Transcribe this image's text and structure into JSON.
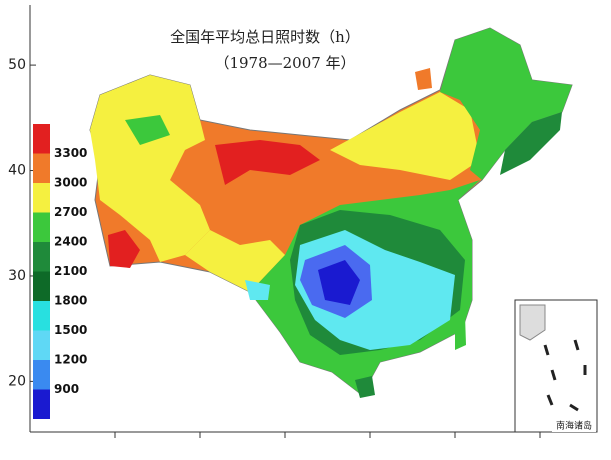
{
  "title": "全国年平均总日照时数（h）",
  "subtitle": "（1978—2007 年）",
  "inset_label": "南海诸岛",
  "lat_axis": {
    "ylim": [
      15.2,
      55.7
    ],
    "ticks": [
      50,
      40,
      30,
      20
    ]
  },
  "legend": {
    "labels": [
      3300,
      3000,
      2700,
      2400,
      2100,
      1800,
      1500,
      1200,
      900
    ],
    "colors": [
      "#e22020",
      "#f07a2a",
      "#f5f040",
      "#3cc83c",
      "#1f8a3a",
      "#0e6a28",
      "#28e0e0",
      "#5fd8f5",
      "#3a8af0",
      "#1a1ad0"
    ]
  }
}
